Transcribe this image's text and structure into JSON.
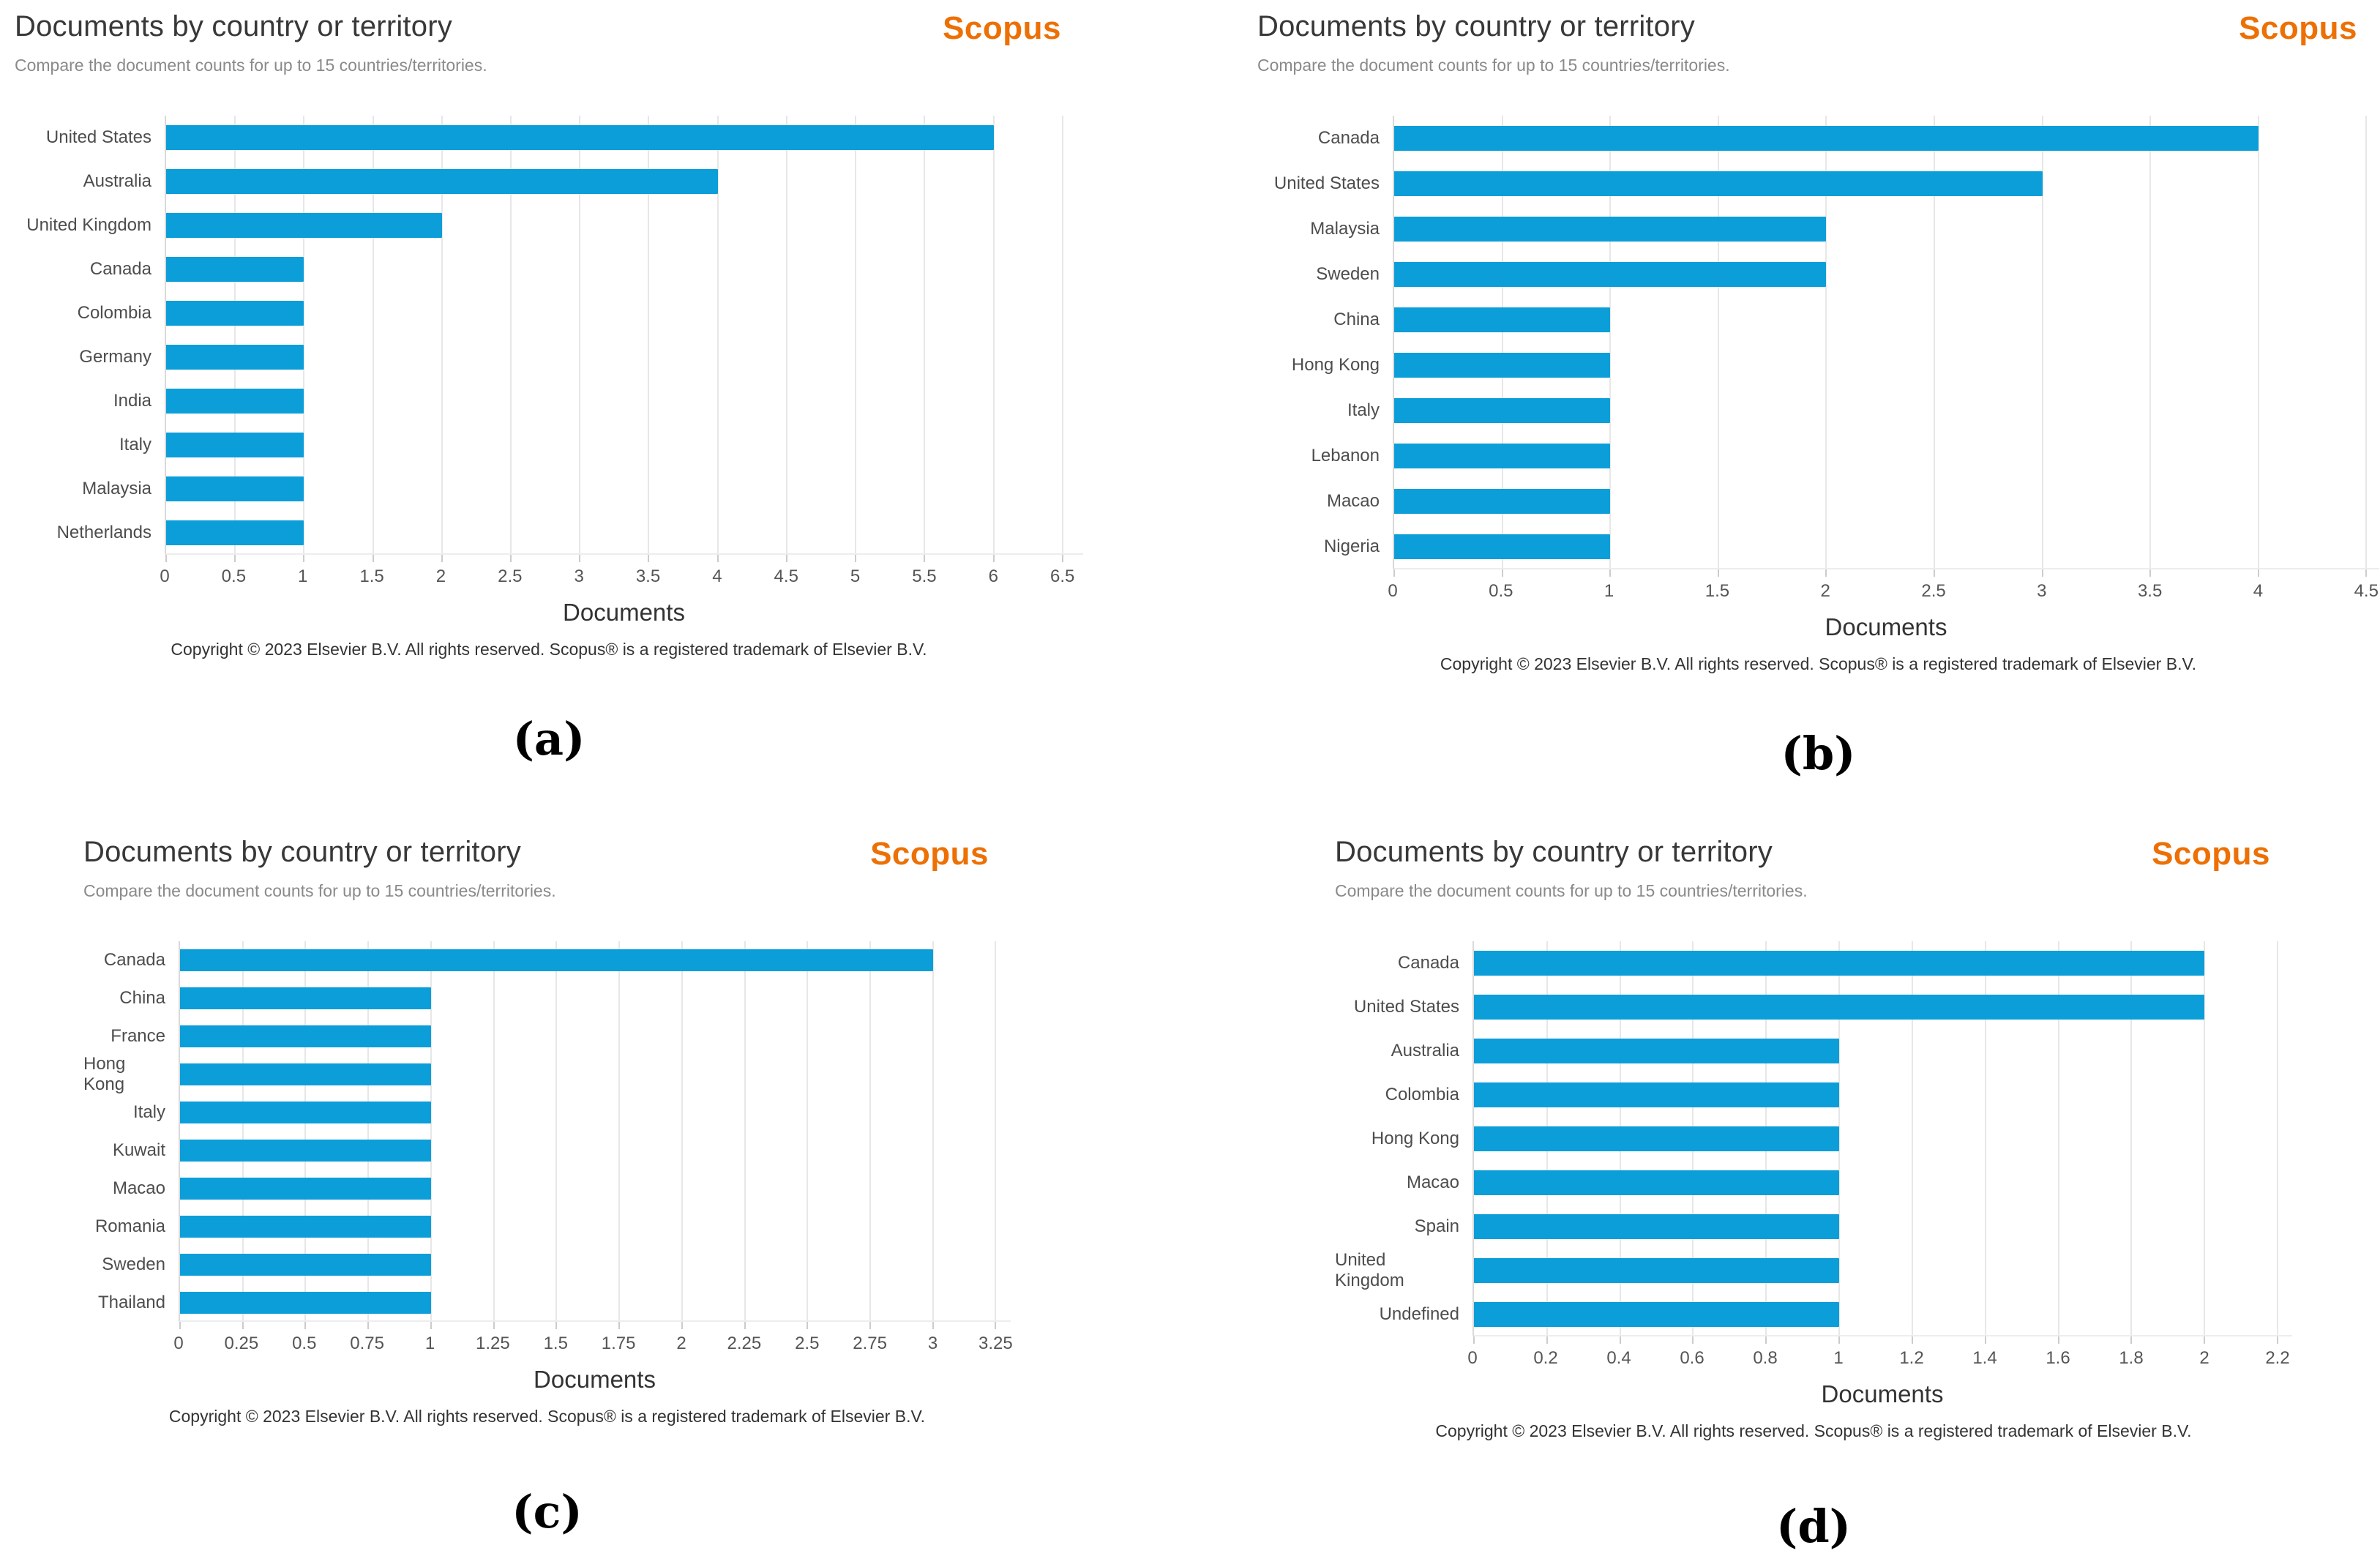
{
  "branding": {
    "scopus_label": "Scopus",
    "scopus_color": "#ed7004"
  },
  "shared": {
    "title": "Documents by country or territory",
    "subtitle": "Compare the document counts for up to 15 countries/territories.",
    "xlabel": "Documents",
    "copyright": "Copyright © 2023 Elsevier B.V. All rights reserved. Scopus® is a registered trademark of Elsevier B.V.",
    "bar_color": "#0c9ed9",
    "grid_color": "#e7e7e7",
    "axis_line_color": "#d9d9d9"
  },
  "chart_data": [
    {
      "id": "a",
      "caption": "(a)",
      "type": "bar",
      "orientation": "horizontal",
      "title": "Documents by country or territory",
      "subtitle": "Compare the document counts for up to 15 countries/territories.",
      "xlabel": "Documents",
      "ylabel": "",
      "categories": [
        "United States",
        "Australia",
        "United Kingdom",
        "Canada",
        "Colombia",
        "Germany",
        "India",
        "Italy",
        "Malaysia",
        "Netherlands"
      ],
      "values": [
        6,
        4,
        2,
        1,
        1,
        1,
        1,
        1,
        1,
        1
      ],
      "xlim": [
        0,
        6.65
      ],
      "tick_values": [
        0,
        0.5,
        1,
        1.5,
        2,
        2.5,
        3,
        3.5,
        4,
        4.5,
        5,
        5.5,
        6,
        6.5
      ],
      "tick_labels": [
        "0",
        "0.5",
        "1",
        "1.5",
        "2",
        "2.5",
        "3",
        "3.5",
        "4",
        "4.5",
        "5",
        "5.5",
        "6",
        "6.5"
      ],
      "grid": true,
      "legend": "none"
    },
    {
      "id": "b",
      "caption": "(b)",
      "type": "bar",
      "orientation": "horizontal",
      "title": "Documents by country or territory",
      "subtitle": "Compare the document counts for up to 15 countries/territories.",
      "xlabel": "Documents",
      "ylabel": "",
      "categories": [
        "Canada",
        "United States",
        "Malaysia",
        "Sweden",
        "China",
        "Hong Kong",
        "Italy",
        "Lebanon",
        "Macao",
        "Nigeria"
      ],
      "values": [
        4,
        3,
        2,
        2,
        1,
        1,
        1,
        1,
        1,
        1
      ],
      "xlim": [
        0,
        4.56
      ],
      "tick_values": [
        0,
        0.5,
        1,
        1.5,
        2,
        2.5,
        3,
        3.5,
        4,
        4.5
      ],
      "tick_labels": [
        "0",
        "0.5",
        "1",
        "1.5",
        "2",
        "2.5",
        "3",
        "3.5",
        "4",
        "4.5"
      ],
      "grid": true,
      "legend": "none"
    },
    {
      "id": "c",
      "caption": "(c)",
      "type": "bar",
      "orientation": "horizontal",
      "title": "Documents by country or territory",
      "subtitle": "Compare the document counts for up to 15 countries/territories.",
      "xlabel": "Documents",
      "ylabel": "",
      "categories": [
        "Canada",
        "China",
        "France",
        "Hong Kong",
        "Italy",
        "Kuwait",
        "Macao",
        "Romania",
        "Sweden",
        "Thailand"
      ],
      "values": [
        3,
        1,
        1,
        1,
        1,
        1,
        1,
        1,
        1,
        1
      ],
      "xlim": [
        0,
        3.31
      ],
      "tick_values": [
        0,
        0.25,
        0.5,
        0.75,
        1,
        1.25,
        1.5,
        1.75,
        2,
        2.25,
        2.5,
        2.75,
        3,
        3.25
      ],
      "tick_labels": [
        "0",
        "0.25",
        "0.5",
        "0.75",
        "1",
        "1.25",
        "1.5",
        "1.75",
        "2",
        "2.25",
        "2.5",
        "2.75",
        "3",
        "3.25"
      ],
      "grid": true,
      "legend": "none"
    },
    {
      "id": "d",
      "caption": "(d)",
      "type": "bar",
      "orientation": "horizontal",
      "title": "Documents by country or territory",
      "subtitle": "Compare the document counts for up to 15 countries/territories.",
      "xlabel": "Documents",
      "ylabel": "",
      "categories": [
        "Canada",
        "United States",
        "Australia",
        "Colombia",
        "Hong Kong",
        "Macao",
        "Spain",
        "United Kingdom",
        "Undefined"
      ],
      "values": [
        2,
        2,
        1,
        1,
        1,
        1,
        1,
        1,
        1
      ],
      "xlim": [
        0,
        2.24
      ],
      "tick_values": [
        0,
        0.2,
        0.4,
        0.6,
        0.8,
        1,
        1.2,
        1.4,
        1.6,
        1.8,
        2,
        2.2
      ],
      "tick_labels": [
        "0",
        "0.2",
        "0.4",
        "0.6",
        "0.8",
        "1",
        "1.2",
        "1.4",
        "1.6",
        "1.8",
        "2",
        "2.2"
      ],
      "grid": true,
      "legend": "none"
    }
  ]
}
